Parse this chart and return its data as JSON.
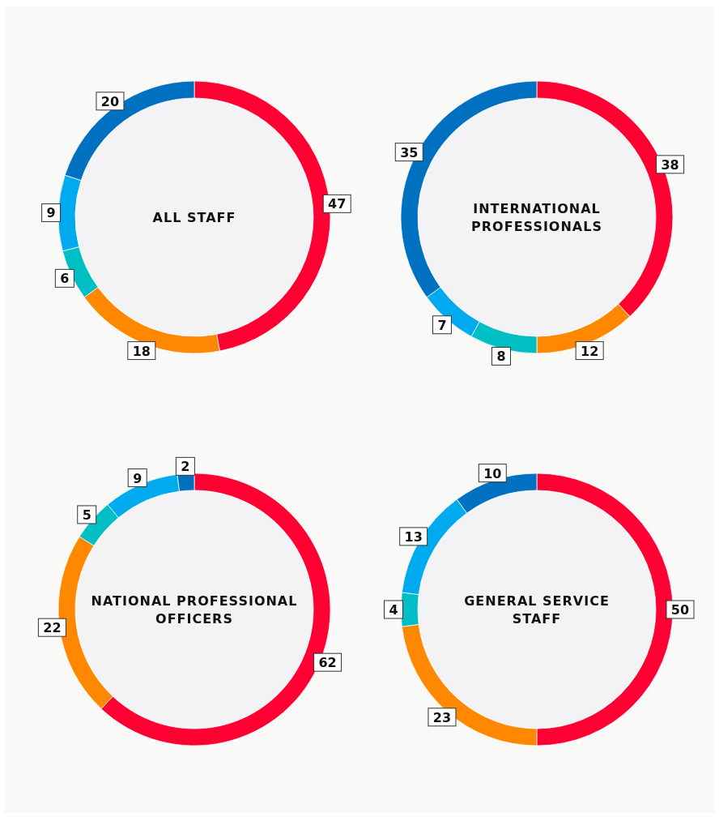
{
  "chart_data": [
    {
      "type": "donut",
      "title": "ALL STAFF",
      "categories": [
        null,
        null,
        null,
        null,
        null
      ],
      "values": [
        47,
        18,
        6,
        9,
        20
      ],
      "colors": [
        "#ff0033",
        "#ff8800",
        "#00bfc4",
        "#00aaee",
        "#0070c0"
      ],
      "data_labels": true
    },
    {
      "type": "donut",
      "title": "INTERNATIONAL PROFESSIONALS",
      "categories": [
        null,
        null,
        null,
        null,
        null
      ],
      "values": [
        38,
        12,
        8,
        7,
        35
      ],
      "colors": [
        "#ff0033",
        "#ff8800",
        "#00bfc4",
        "#00aaee",
        "#0070c0"
      ],
      "data_labels": true
    },
    {
      "type": "donut",
      "title": "NATIONAL PROFESSIONAL OFFICERS",
      "categories": [
        null,
        null,
        null,
        null,
        null
      ],
      "values": [
        62,
        22,
        5,
        9,
        2
      ],
      "colors": [
        "#ff0033",
        "#ff8800",
        "#00bfc4",
        "#00aaee",
        "#0070c0"
      ],
      "data_labels": true
    },
    {
      "type": "donut",
      "title": "GENERAL SERVICE STAFF",
      "categories": [
        null,
        null,
        null,
        null,
        null
      ],
      "values": [
        50,
        23,
        4,
        13,
        10
      ],
      "colors": [
        "#ff0033",
        "#ff8800",
        "#00bfc4",
        "#00aaee",
        "#0070c0"
      ],
      "data_labels": true
    }
  ]
}
